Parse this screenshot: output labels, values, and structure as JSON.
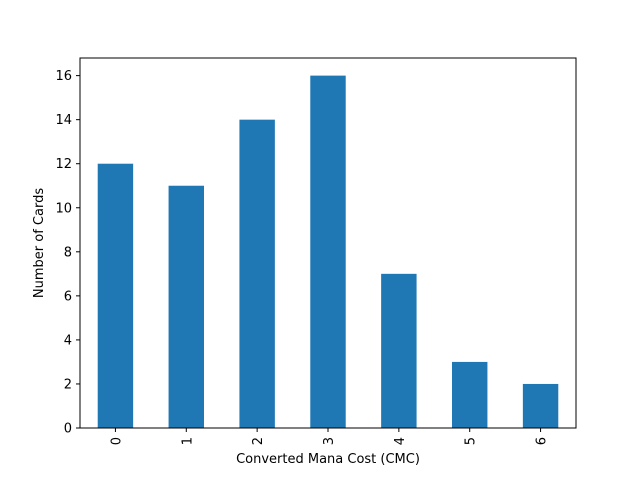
{
  "chart_data": {
    "type": "bar",
    "categories": [
      "0",
      "1",
      "2",
      "3",
      "4",
      "5",
      "6"
    ],
    "values": [
      12,
      11,
      14,
      16,
      7,
      3,
      2
    ],
    "title": "",
    "xlabel": "Converted Mana Cost (CMC)",
    "ylabel": "Number of Cards",
    "ylim": [
      0,
      16.8
    ],
    "yticks": [
      0,
      2,
      4,
      6,
      8,
      10,
      12,
      14,
      16
    ],
    "bar_color": "#1f77b4",
    "grid": false,
    "legend": "none",
    "xtick_rotation": "vertical"
  }
}
